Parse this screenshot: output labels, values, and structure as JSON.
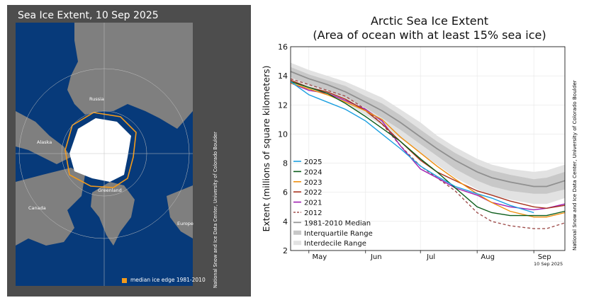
{
  "map": {
    "title": "Sea Ice Extent, 10 Sep 2025",
    "credit": "National Snow and Ice Data Center, University of Colorado Boulder",
    "legend_label": "median ice edge 1981-2010",
    "places": [
      "Russia",
      "Alaska",
      "Greenland",
      "Canada",
      "Europe"
    ],
    "colors": {
      "ocean": "#073a7a",
      "land": "#7f7f7f",
      "ice": "#ffffff",
      "median_edge": "#f29a1b",
      "panel": "#4d4d4d"
    }
  },
  "chart_data": {
    "type": "line",
    "title": [
      "Arctic Sea Ice Extent",
      "(Area of ocean with at least 15% sea ice)"
    ],
    "ylabel": "Extent (millions of square kilometers)",
    "xlabel": "",
    "ylim": [
      2,
      16
    ],
    "yticks": [
      2,
      4,
      6,
      8,
      10,
      12,
      14,
      16
    ],
    "x_months": [
      "May",
      "Jun",
      "Jul",
      "Aug",
      "Sep"
    ],
    "x_days": [
      0,
      31,
      61,
      92,
      123
    ],
    "x_range_days": [
      -10,
      140
    ],
    "date_stamp": "10 Sep 2025",
    "credit": "National Snow and Ice Data Center, University of Colorado Boulder",
    "grid": true,
    "legend_position": "bottom-left",
    "series": [
      {
        "name": "2025",
        "color": "#1a9fe0",
        "points": [
          [
            -10,
            13.6
          ],
          [
            0,
            12.7
          ],
          [
            10,
            12.2
          ],
          [
            20,
            11.7
          ],
          [
            31,
            10.9
          ],
          [
            40,
            10.0
          ],
          [
            50,
            9.0
          ],
          [
            61,
            7.8
          ],
          [
            70,
            7.1
          ],
          [
            80,
            6.4
          ],
          [
            92,
            5.9
          ],
          [
            100,
            5.6
          ],
          [
            110,
            5.1
          ],
          [
            123,
            4.6
          ]
        ]
      },
      {
        "name": "2024",
        "color": "#0b5c1a",
        "points": [
          [
            -10,
            13.6
          ],
          [
            0,
            13.2
          ],
          [
            10,
            12.8
          ],
          [
            20,
            12.1
          ],
          [
            31,
            11.2
          ],
          [
            40,
            10.4
          ],
          [
            50,
            9.5
          ],
          [
            61,
            8.3
          ],
          [
            70,
            7.4
          ],
          [
            80,
            6.3
          ],
          [
            92,
            5.0
          ],
          [
            100,
            4.6
          ],
          [
            110,
            4.4
          ],
          [
            123,
            4.4
          ],
          [
            130,
            4.4
          ],
          [
            140,
            4.7
          ]
        ]
      },
      {
        "name": "2023",
        "color": "#f08f0e",
        "points": [
          [
            -10,
            13.5
          ],
          [
            0,
            13.1
          ],
          [
            10,
            12.7
          ],
          [
            20,
            12.2
          ],
          [
            31,
            11.6
          ],
          [
            40,
            11.0
          ],
          [
            50,
            9.8
          ],
          [
            61,
            8.7
          ],
          [
            70,
            7.8
          ],
          [
            80,
            6.9
          ],
          [
            92,
            5.9
          ],
          [
            100,
            5.3
          ],
          [
            110,
            4.7
          ],
          [
            123,
            4.3
          ],
          [
            130,
            4.3
          ],
          [
            140,
            4.6
          ]
        ]
      },
      {
        "name": "2022",
        "color": "#a8321e",
        "points": [
          [
            -10,
            13.7
          ],
          [
            0,
            13.2
          ],
          [
            10,
            12.9
          ],
          [
            20,
            12.4
          ],
          [
            31,
            11.6
          ],
          [
            40,
            10.7
          ],
          [
            50,
            9.5
          ],
          [
            61,
            8.2
          ],
          [
            70,
            7.4
          ],
          [
            80,
            6.8
          ],
          [
            92,
            6.1
          ],
          [
            100,
            5.8
          ],
          [
            110,
            5.4
          ],
          [
            123,
            5.0
          ],
          [
            130,
            4.9
          ],
          [
            140,
            5.1
          ]
        ]
      },
      {
        "name": "2021",
        "color": "#a01fb0",
        "points": [
          [
            -10,
            13.5
          ],
          [
            0,
            13.0
          ],
          [
            10,
            12.8
          ],
          [
            20,
            12.3
          ],
          [
            31,
            11.7
          ],
          [
            40,
            10.9
          ],
          [
            50,
            9.2
          ],
          [
            61,
            7.6
          ],
          [
            70,
            7.0
          ],
          [
            80,
            6.3
          ],
          [
            92,
            5.8
          ],
          [
            100,
            5.3
          ],
          [
            110,
            5.0
          ],
          [
            123,
            4.8
          ],
          [
            130,
            4.9
          ],
          [
            140,
            5.2
          ]
        ]
      },
      {
        "name": "2012",
        "color": "#a0504e",
        "dashed": true,
        "points": [
          [
            -10,
            13.8
          ],
          [
            0,
            13.4
          ],
          [
            10,
            13.0
          ],
          [
            20,
            12.6
          ],
          [
            31,
            11.7
          ],
          [
            40,
            10.7
          ],
          [
            50,
            9.2
          ],
          [
            61,
            7.8
          ],
          [
            70,
            7.0
          ],
          [
            80,
            6.1
          ],
          [
            92,
            4.6
          ],
          [
            100,
            4.0
          ],
          [
            110,
            3.7
          ],
          [
            123,
            3.5
          ],
          [
            130,
            3.5
          ],
          [
            140,
            3.9
          ]
        ]
      },
      {
        "name": "1981-2010 Median",
        "color": "#909090",
        "points": [
          [
            -10,
            14.3
          ],
          [
            0,
            13.8
          ],
          [
            10,
            13.4
          ],
          [
            20,
            12.9
          ],
          [
            31,
            12.2
          ],
          [
            40,
            11.6
          ],
          [
            50,
            10.8
          ],
          [
            61,
            9.8
          ],
          [
            70,
            9.0
          ],
          [
            80,
            8.2
          ],
          [
            92,
            7.4
          ],
          [
            100,
            7.0
          ],
          [
            110,
            6.7
          ],
          [
            123,
            6.4
          ],
          [
            130,
            6.4
          ],
          [
            140,
            6.8
          ]
        ]
      }
    ],
    "bands": [
      {
        "name": "Interquartile Range",
        "color": "#c8c8c8",
        "lower": [
          [
            -10,
            13.9
          ],
          [
            0,
            13.4
          ],
          [
            10,
            13.0
          ],
          [
            20,
            12.5
          ],
          [
            31,
            11.8
          ],
          [
            40,
            11.1
          ],
          [
            50,
            10.3
          ],
          [
            61,
            9.3
          ],
          [
            70,
            8.5
          ],
          [
            80,
            7.6
          ],
          [
            92,
            6.8
          ],
          [
            100,
            6.4
          ],
          [
            110,
            6.1
          ],
          [
            123,
            5.9
          ],
          [
            130,
            5.9
          ],
          [
            140,
            6.2
          ]
        ],
        "upper": [
          [
            -10,
            14.6
          ],
          [
            0,
            14.1
          ],
          [
            10,
            13.7
          ],
          [
            20,
            13.3
          ],
          [
            31,
            12.6
          ],
          [
            40,
            12.1
          ],
          [
            50,
            11.3
          ],
          [
            61,
            10.3
          ],
          [
            70,
            9.5
          ],
          [
            80,
            8.7
          ],
          [
            92,
            7.9
          ],
          [
            100,
            7.5
          ],
          [
            110,
            7.2
          ],
          [
            123,
            6.9
          ],
          [
            130,
            7.0
          ],
          [
            140,
            7.4
          ]
        ]
      },
      {
        "name": "Interdecile Range",
        "color": "#e2e2e2",
        "lower": [
          [
            -10,
            13.6
          ],
          [
            0,
            13.1
          ],
          [
            10,
            12.7
          ],
          [
            20,
            12.1
          ],
          [
            31,
            11.3
          ],
          [
            40,
            10.6
          ],
          [
            50,
            9.7
          ],
          [
            61,
            8.7
          ],
          [
            70,
            7.9
          ],
          [
            80,
            7.0
          ],
          [
            92,
            6.2
          ],
          [
            100,
            5.8
          ],
          [
            110,
            5.5
          ],
          [
            123,
            5.2
          ],
          [
            130,
            5.2
          ],
          [
            140,
            5.6
          ]
        ],
        "upper": [
          [
            -10,
            14.9
          ],
          [
            0,
            14.4
          ],
          [
            10,
            14.0
          ],
          [
            20,
            13.6
          ],
          [
            31,
            13.0
          ],
          [
            40,
            12.5
          ],
          [
            50,
            11.7
          ],
          [
            61,
            10.8
          ],
          [
            70,
            9.9
          ],
          [
            80,
            9.1
          ],
          [
            92,
            8.3
          ],
          [
            100,
            7.9
          ],
          [
            110,
            7.6
          ],
          [
            123,
            7.4
          ],
          [
            130,
            7.5
          ],
          [
            140,
            7.9
          ]
        ]
      }
    ],
    "legend": [
      "2025",
      "2024",
      "2023",
      "2022",
      "2021",
      "2012",
      "1981-2010 Median",
      "Interquartile Range",
      "Interdecile Range"
    ]
  }
}
